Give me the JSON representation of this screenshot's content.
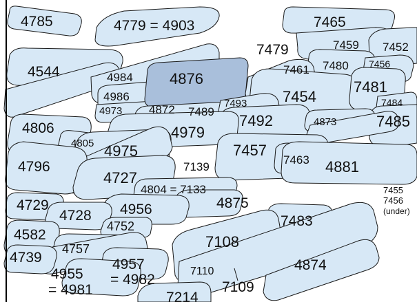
{
  "colors": {
    "shape_fill": "#d7e8f6",
    "highlight_fill": "#a9bfdb",
    "outline": "#1a1a1a",
    "frame": "#000000"
  },
  "features": [
    {
      "id": "4785",
      "label": "4785"
    },
    {
      "id": "4779",
      "label": "4779 = 4903"
    },
    {
      "id": "7465",
      "label": "7465"
    },
    {
      "id": "7479",
      "label": "7479"
    },
    {
      "id": "7459",
      "label": "7459"
    },
    {
      "id": "7452",
      "label": "7452"
    },
    {
      "id": "7461",
      "label": "7461"
    },
    {
      "id": "7480",
      "label": "7480"
    },
    {
      "id": "7456",
      "label": "7456"
    },
    {
      "id": "4544",
      "label": "4544"
    },
    {
      "id": "4984",
      "label": "4984"
    },
    {
      "id": "4876",
      "label": "4876",
      "highlighted": true
    },
    {
      "id": "4986",
      "label": "4986"
    },
    {
      "id": "4973",
      "label": "4973"
    },
    {
      "id": "7454",
      "label": "7454"
    },
    {
      "id": "7481",
      "label": "7481"
    },
    {
      "id": "7484",
      "label": "7484"
    },
    {
      "id": "7493",
      "label": "7493"
    },
    {
      "id": "4872",
      "label": "4872"
    },
    {
      "id": "7489",
      "label": "7489"
    },
    {
      "id": "7492",
      "label": "7492"
    },
    {
      "id": "4873",
      "label": "4873"
    },
    {
      "id": "7485",
      "label": "7485"
    },
    {
      "id": "4806",
      "label": "4806"
    },
    {
      "id": "4979",
      "label": "4979"
    },
    {
      "id": "4805",
      "label": "4805"
    },
    {
      "id": "4975",
      "label": "4975"
    },
    {
      "id": "7457",
      "label": "7457"
    },
    {
      "id": "4796",
      "label": "4796"
    },
    {
      "id": "7463",
      "label": "7463"
    },
    {
      "id": "4881",
      "label": "4881"
    },
    {
      "id": "7139",
      "label": "7139"
    },
    {
      "id": "4727",
      "label": "4727"
    },
    {
      "id": "4804",
      "label": "4804 = 7133"
    },
    {
      "id": "7455",
      "label": "7455"
    },
    {
      "id": "7456b",
      "label": "7456"
    },
    {
      "id": "under",
      "label": "(under)"
    },
    {
      "id": "4729",
      "label": "4729"
    },
    {
      "id": "4875",
      "label": "4875"
    },
    {
      "id": "4728",
      "label": "4728"
    },
    {
      "id": "4956",
      "label": "4956"
    },
    {
      "id": "4752",
      "label": "4752"
    },
    {
      "id": "7483",
      "label": "7483"
    },
    {
      "id": "4582",
      "label": "4582"
    },
    {
      "id": "7108",
      "label": "7108"
    },
    {
      "id": "4757",
      "label": "4757"
    },
    {
      "id": "4739",
      "label": "4739"
    },
    {
      "id": "4957",
      "label": "4957"
    },
    {
      "id": "4982",
      "label": "= 4982"
    },
    {
      "id": "4955",
      "label": "4955"
    },
    {
      "id": "4981",
      "label": "= 4981"
    },
    {
      "id": "4874",
      "label": "4874"
    },
    {
      "id": "7110",
      "label": "7110"
    },
    {
      "id": "7109",
      "label": "7109"
    },
    {
      "id": "7214",
      "label": "7214"
    }
  ]
}
